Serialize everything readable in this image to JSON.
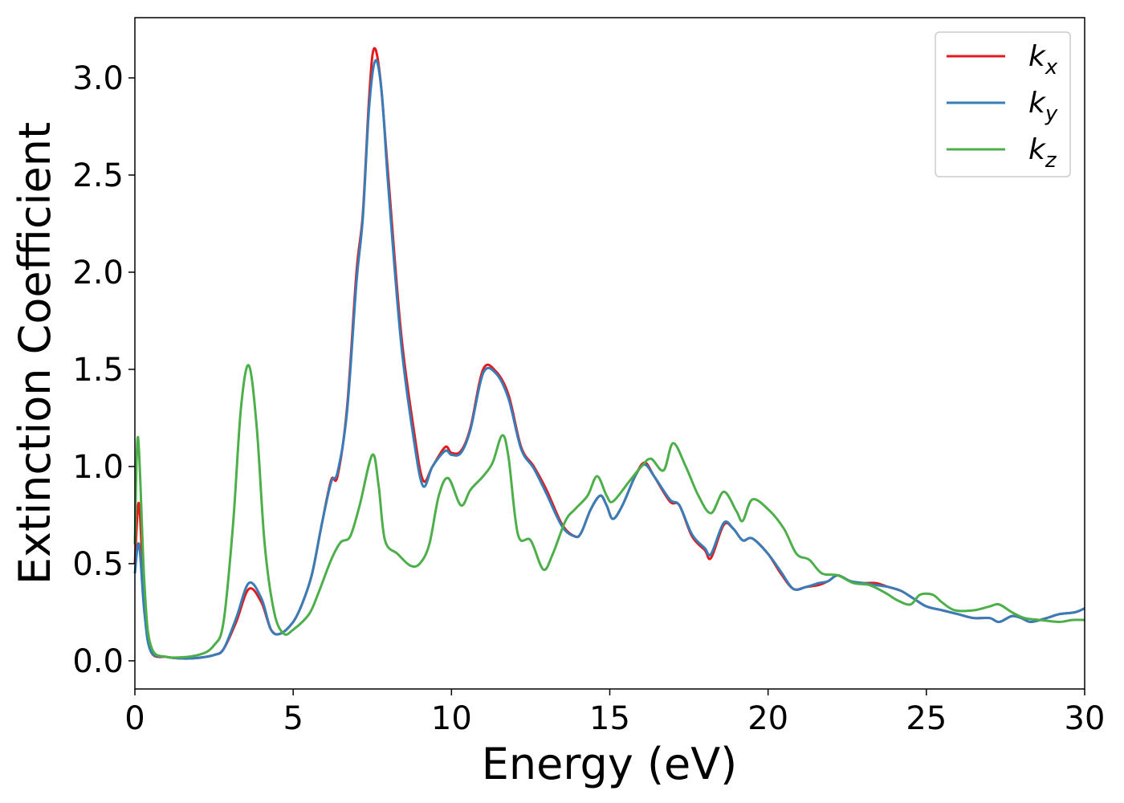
{
  "chart_data": {
    "type": "line",
    "title": "",
    "xlabel": "Energy (eV)",
    "ylabel": "Extinction Coefficient",
    "xlim": [
      0,
      30
    ],
    "ylim": [
      -0.145,
      3.31
    ],
    "xticks": [
      "0",
      "5",
      "10",
      "15",
      "20",
      "25",
      "30"
    ],
    "yticks": [
      "0.0",
      "0.5",
      "1.0",
      "1.5",
      "2.0",
      "2.5",
      "3.0"
    ],
    "grid": false,
    "legend_position": "top-right",
    "series": [
      {
        "name": "k_x",
        "label_base": "k",
        "label_sub": "x",
        "color": "#e41a1c",
        "x": [
          0,
          0.13,
          0.3,
          0.5,
          1,
          1.5,
          2,
          2.5,
          2.8,
          3.2,
          3.6,
          4.0,
          4.3,
          4.6,
          5,
          5.3,
          5.6,
          5.9,
          6.2,
          6.4,
          6.7,
          7.0,
          7.2,
          7.4,
          7.55,
          7.75,
          8.0,
          8.4,
          8.8,
          9.1,
          9.4,
          9.8,
          10.0,
          10.3,
          10.6,
          11.0,
          11.4,
          11.8,
          12.2,
          12.6,
          13.0,
          13.5,
          13.9,
          14.1,
          14.4,
          14.7,
          14.9,
          15.1,
          15.4,
          15.8,
          16.1,
          16.4,
          16.9,
          17.2,
          17.6,
          18.0,
          18.2,
          18.6,
          18.9,
          19.2,
          19.5,
          20.0,
          20.4,
          20.8,
          21.2,
          21.6,
          21.9,
          22.2,
          22.6,
          23.0,
          23.4,
          23.8,
          24.2,
          24.6,
          25.0,
          25.5,
          26.0,
          26.5,
          27.0,
          27.3,
          27.7,
          28.0,
          28.3,
          28.8,
          29.2,
          29.7,
          30
        ],
        "y": [
          0.5,
          0.81,
          0.3,
          0.05,
          0.02,
          0.012,
          0.015,
          0.03,
          0.06,
          0.2,
          0.37,
          0.3,
          0.16,
          0.14,
          0.2,
          0.3,
          0.45,
          0.7,
          0.93,
          0.95,
          1.3,
          2.0,
          2.3,
          2.9,
          3.15,
          3.0,
          2.5,
          1.7,
          1.2,
          0.93,
          1.0,
          1.1,
          1.07,
          1.08,
          1.2,
          1.5,
          1.49,
          1.37,
          1.1,
          1.0,
          0.88,
          0.7,
          0.64,
          0.66,
          0.78,
          0.85,
          0.8,
          0.73,
          0.8,
          0.95,
          1.02,
          0.95,
          0.82,
          0.8,
          0.64,
          0.57,
          0.53,
          0.7,
          0.68,
          0.62,
          0.63,
          0.55,
          0.45,
          0.37,
          0.38,
          0.39,
          0.41,
          0.44,
          0.41,
          0.4,
          0.4,
          0.38,
          0.36,
          0.32,
          0.28,
          0.26,
          0.24,
          0.22,
          0.22,
          0.2,
          0.23,
          0.22,
          0.2,
          0.22,
          0.24,
          0.25,
          0.27
        ]
      },
      {
        "name": "k_y",
        "label_base": "k",
        "label_sub": "y",
        "color": "#377eb8",
        "x": [
          0,
          0.13,
          0.3,
          0.5,
          1,
          1.5,
          2,
          2.5,
          2.8,
          3.2,
          3.6,
          4.0,
          4.3,
          4.6,
          5,
          5.3,
          5.6,
          5.9,
          6.2,
          6.4,
          6.7,
          7.0,
          7.2,
          7.4,
          7.6,
          7.8,
          8.0,
          8.4,
          8.8,
          9.1,
          9.4,
          9.8,
          10.0,
          10.3,
          10.6,
          11.0,
          11.4,
          11.8,
          12.2,
          12.6,
          13.0,
          13.5,
          13.9,
          14.1,
          14.4,
          14.7,
          14.9,
          15.1,
          15.4,
          15.8,
          16.1,
          16.4,
          16.9,
          17.2,
          17.6,
          18.0,
          18.2,
          18.6,
          18.9,
          19.2,
          19.5,
          20.0,
          20.4,
          20.8,
          21.2,
          21.6,
          21.9,
          22.2,
          22.6,
          23.0,
          23.4,
          23.8,
          24.2,
          24.6,
          25.0,
          25.5,
          26.0,
          26.5,
          27.0,
          27.3,
          27.7,
          28.0,
          28.3,
          28.8,
          29.2,
          29.7,
          30
        ],
        "y": [
          0.45,
          0.6,
          0.25,
          0.05,
          0.02,
          0.012,
          0.015,
          0.03,
          0.06,
          0.22,
          0.4,
          0.32,
          0.16,
          0.14,
          0.2,
          0.3,
          0.45,
          0.7,
          0.92,
          0.97,
          1.28,
          1.95,
          2.28,
          2.85,
          3.09,
          2.92,
          2.45,
          1.65,
          1.15,
          0.9,
          1.0,
          1.08,
          1.06,
          1.07,
          1.19,
          1.48,
          1.48,
          1.35,
          1.09,
          0.99,
          0.86,
          0.69,
          0.64,
          0.66,
          0.78,
          0.85,
          0.8,
          0.73,
          0.8,
          0.95,
          1.01,
          0.95,
          0.83,
          0.8,
          0.65,
          0.58,
          0.55,
          0.71,
          0.68,
          0.62,
          0.63,
          0.55,
          0.46,
          0.37,
          0.38,
          0.4,
          0.41,
          0.44,
          0.41,
          0.4,
          0.39,
          0.38,
          0.36,
          0.32,
          0.28,
          0.26,
          0.24,
          0.22,
          0.22,
          0.2,
          0.23,
          0.22,
          0.2,
          0.22,
          0.24,
          0.25,
          0.27
        ]
      },
      {
        "name": "k_z",
        "label_base": "k",
        "label_sub": "z",
        "color": "#4daf4a",
        "x": [
          0,
          0.1,
          0.3,
          0.5,
          1,
          2,
          2.5,
          2.8,
          3.1,
          3.35,
          3.6,
          3.85,
          4.1,
          4.4,
          4.7,
          5.0,
          5.5,
          5.8,
          6.2,
          6.5,
          6.8,
          7.1,
          7.5,
          7.7,
          7.9,
          8.3,
          8.7,
          9.0,
          9.3,
          9.6,
          9.9,
          10.3,
          10.6,
          11.0,
          11.3,
          11.6,
          11.8,
          12.1,
          12.5,
          12.9,
          13.2,
          13.6,
          13.9,
          14.3,
          14.6,
          14.9,
          15.1,
          15.6,
          16.0,
          16.3,
          16.7,
          17.0,
          17.4,
          17.8,
          18.2,
          18.6,
          19.0,
          19.2,
          19.5,
          20.0,
          20.5,
          20.9,
          21.3,
          21.7,
          22.2,
          22.7,
          23.2,
          23.7,
          24.1,
          24.5,
          24.8,
          25.2,
          25.5,
          25.9,
          26.5,
          27.0,
          27.3,
          27.7,
          28.1,
          28.6,
          29.2,
          29.6,
          30
        ],
        "y": [
          0.6,
          1.15,
          0.4,
          0.08,
          0.02,
          0.03,
          0.08,
          0.2,
          0.7,
          1.3,
          1.52,
          1.2,
          0.6,
          0.25,
          0.14,
          0.16,
          0.24,
          0.35,
          0.52,
          0.61,
          0.64,
          0.8,
          1.06,
          0.9,
          0.62,
          0.55,
          0.49,
          0.5,
          0.6,
          0.85,
          0.94,
          0.8,
          0.88,
          0.95,
          1.02,
          1.16,
          1.05,
          0.65,
          0.62,
          0.47,
          0.55,
          0.72,
          0.78,
          0.85,
          0.95,
          0.85,
          0.82,
          0.92,
          1.0,
          1.04,
          0.98,
          1.12,
          1.0,
          0.85,
          0.76,
          0.87,
          0.77,
          0.72,
          0.83,
          0.78,
          0.68,
          0.55,
          0.52,
          0.45,
          0.44,
          0.4,
          0.39,
          0.35,
          0.31,
          0.29,
          0.34,
          0.34,
          0.3,
          0.26,
          0.26,
          0.28,
          0.29,
          0.25,
          0.22,
          0.21,
          0.2,
          0.21,
          0.21
        ]
      }
    ]
  }
}
